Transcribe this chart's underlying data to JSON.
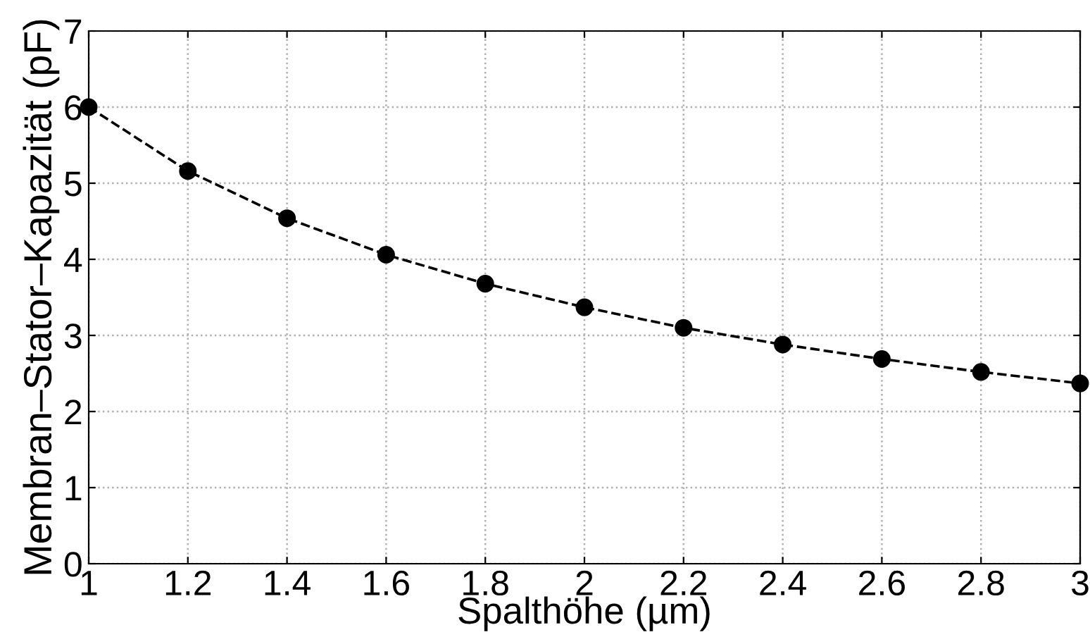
{
  "chart_data": {
    "type": "line",
    "xlabel": "Spalthöhe (µm)",
    "ylabel": "Membran–Stator–Kapazität (pF)",
    "x": [
      1,
      1.2,
      1.4,
      1.6,
      1.8,
      2,
      2.2,
      2.4,
      2.6,
      2.8,
      3
    ],
    "series": [
      {
        "color": "#000000",
        "values": [
          6.0,
          5.16,
          4.54,
          4.06,
          3.68,
          3.37,
          3.1,
          2.88,
          2.69,
          2.52,
          2.37
        ]
      }
    ],
    "xlim": [
      1,
      3
    ],
    "xticks": [
      1,
      1.2,
      1.4,
      1.6,
      1.8,
      2,
      2.2,
      2.4,
      2.6,
      2.8,
      3
    ],
    "ylim": [
      0,
      7
    ],
    "yticks": [
      0,
      1,
      2,
      3,
      4,
      5,
      6,
      7
    ],
    "grid": true,
    "marker": "circle",
    "line_style": "dashed"
  }
}
